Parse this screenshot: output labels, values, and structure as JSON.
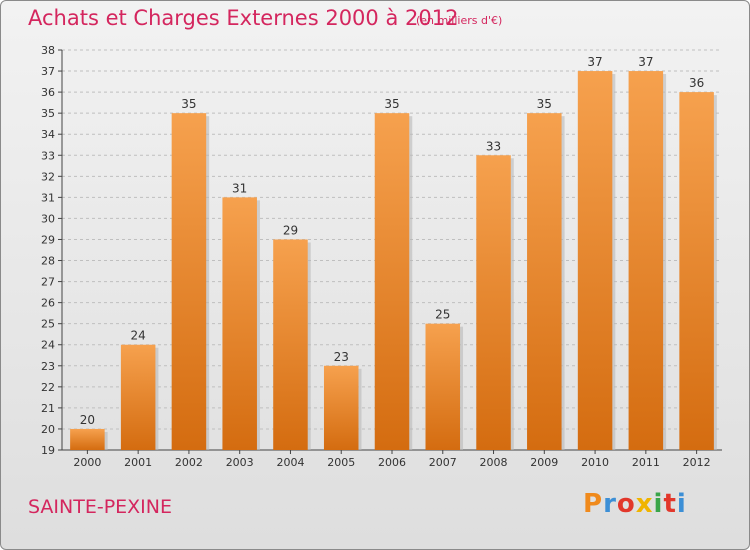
{
  "header": {
    "title": "Achats et Charges Externes 2000 à 2012",
    "subtitle": "(en milliers d'€)"
  },
  "footer": {
    "city": "SAINTE-PEXINE",
    "logo_text": "Proxiti",
    "logo_letters": [
      "P",
      "r",
      "o",
      "x",
      "i",
      "t",
      "i"
    ],
    "logo_colors": [
      "#f08a1c",
      "#3c8fd6",
      "#e2372b",
      "#f0b400",
      "#3aa54a",
      "#e2372b",
      "#3c8fd6"
    ]
  },
  "chart_data": {
    "type": "bar",
    "title": "Achats et Charges Externes 2000 à 2012",
    "subtitle": "(en milliers d'€)",
    "categories": [
      "2000",
      "2001",
      "2002",
      "2003",
      "2004",
      "2005",
      "2006",
      "2007",
      "2008",
      "2009",
      "2010",
      "2011",
      "2012"
    ],
    "values": [
      20,
      24,
      35,
      31,
      29,
      23,
      35,
      25,
      33,
      35,
      37,
      37,
      36
    ],
    "ylim": [
      19,
      38
    ],
    "yticks": [
      19,
      20,
      21,
      22,
      23,
      24,
      25,
      26,
      27,
      28,
      29,
      30,
      31,
      32,
      33,
      34,
      35,
      36,
      37,
      38
    ],
    "grid": true,
    "bar_color": "#f0902e",
    "grid_color": "#bfbfbf"
  }
}
